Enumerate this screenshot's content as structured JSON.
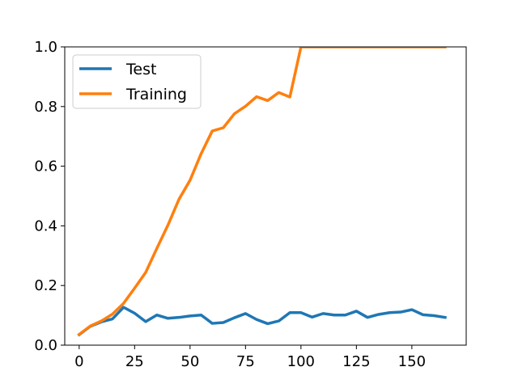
{
  "chart_data": {
    "type": "line",
    "title": "",
    "xlabel": "",
    "ylabel": "",
    "xlim": [
      -6.5,
      174.5
    ],
    "ylim": [
      0.0,
      1.0
    ],
    "x_ticks": [
      0,
      25,
      50,
      75,
      100,
      125,
      150
    ],
    "x_tick_labels": [
      "0",
      "25",
      "50",
      "75",
      "100",
      "125",
      "150"
    ],
    "y_ticks": [
      0.0,
      0.2,
      0.4,
      0.6,
      0.8,
      1.0
    ],
    "y_tick_labels": [
      "0.0",
      "0.2",
      "0.4",
      "0.6",
      "0.8",
      "1.0"
    ],
    "grid": false,
    "legend_position": "top-left",
    "series": [
      {
        "name": "Test",
        "color": "#1f77b4",
        "x": [
          0,
          5,
          10,
          15,
          20,
          25,
          30,
          35,
          40,
          45,
          50,
          55,
          60,
          65,
          70,
          75,
          80,
          85,
          90,
          95,
          100,
          105,
          110,
          115,
          120,
          125,
          130,
          135,
          140,
          145,
          150,
          155,
          160,
          165
        ],
        "y": [
          0.035,
          0.063,
          0.078,
          0.088,
          0.127,
          0.107,
          0.079,
          0.101,
          0.09,
          0.093,
          0.098,
          0.101,
          0.073,
          0.076,
          0.092,
          0.106,
          0.086,
          0.072,
          0.081,
          0.109,
          0.109,
          0.094,
          0.106,
          0.101,
          0.101,
          0.114,
          0.093,
          0.103,
          0.109,
          0.111,
          0.119,
          0.102,
          0.099,
          0.093
        ]
      },
      {
        "name": "Training",
        "color": "#ff7f0e",
        "x": [
          0,
          5,
          10,
          15,
          20,
          25,
          30,
          35,
          40,
          45,
          50,
          55,
          60,
          65,
          70,
          75,
          80,
          85,
          90,
          95,
          100,
          105,
          110,
          115,
          120,
          125,
          130,
          135,
          140,
          145,
          150,
          155,
          160,
          165
        ],
        "y": [
          0.036,
          0.064,
          0.081,
          0.104,
          0.14,
          0.191,
          0.244,
          0.324,
          0.402,
          0.489,
          0.553,
          0.642,
          0.718,
          0.729,
          0.776,
          0.801,
          0.833,
          0.82,
          0.847,
          0.832,
          1.0,
          1.0,
          1.0,
          1.0,
          1.0,
          1.0,
          1.0,
          1.0,
          1.0,
          1.0,
          1.0,
          1.0,
          1.0,
          1.0
        ]
      }
    ]
  }
}
